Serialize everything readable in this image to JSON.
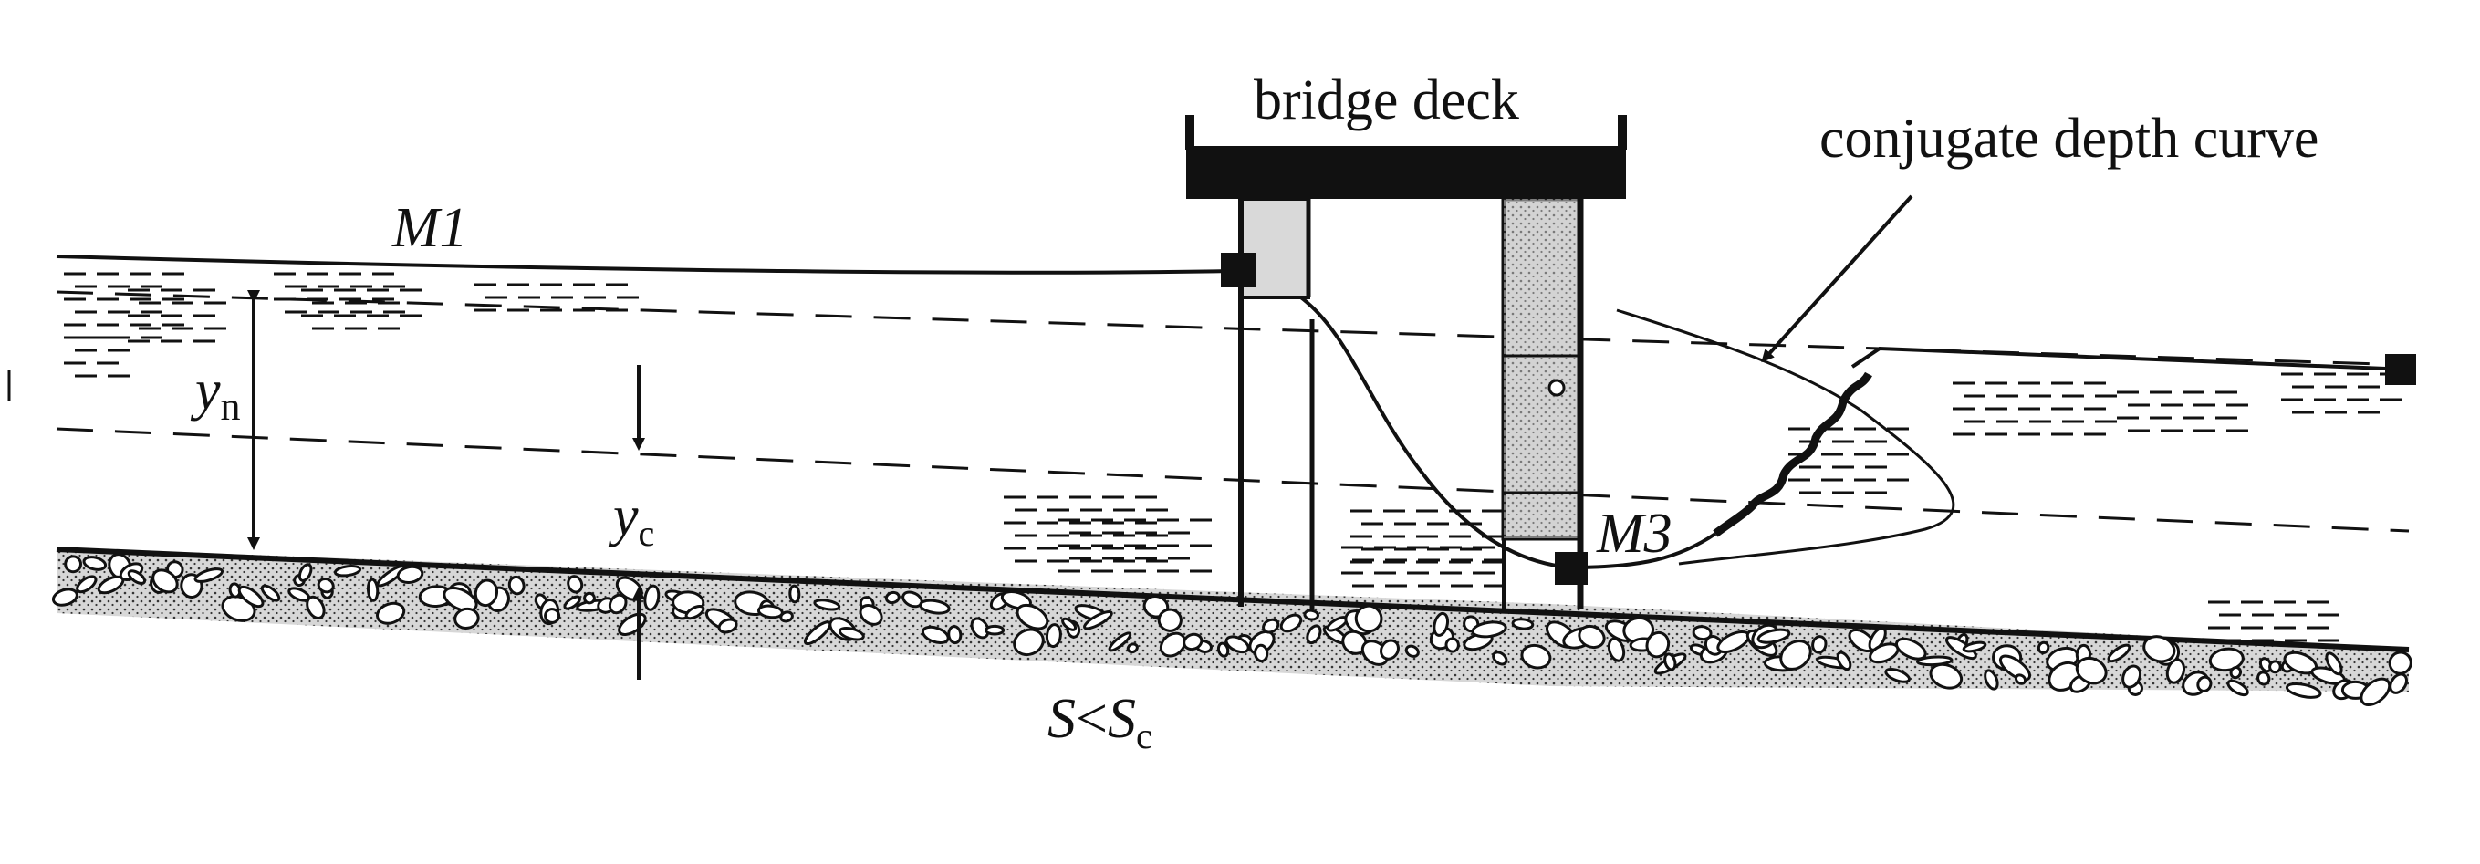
{
  "labels": {
    "bridge_deck": "bridge deck",
    "conjugate_depth_curve": "conjugate depth curve",
    "m1": "M1",
    "m3": "M3",
    "yn_var": "y",
    "yn_sub": "n",
    "yc_var": "y",
    "yc_sub": "c",
    "slope_s": "S",
    "slope_lt": "<",
    "slope_sc": "S",
    "slope_sc_sub": "c"
  },
  "colors": {
    "ink": "#111111",
    "pier_fill": "#cfcfcf",
    "background": "#ffffff"
  }
}
